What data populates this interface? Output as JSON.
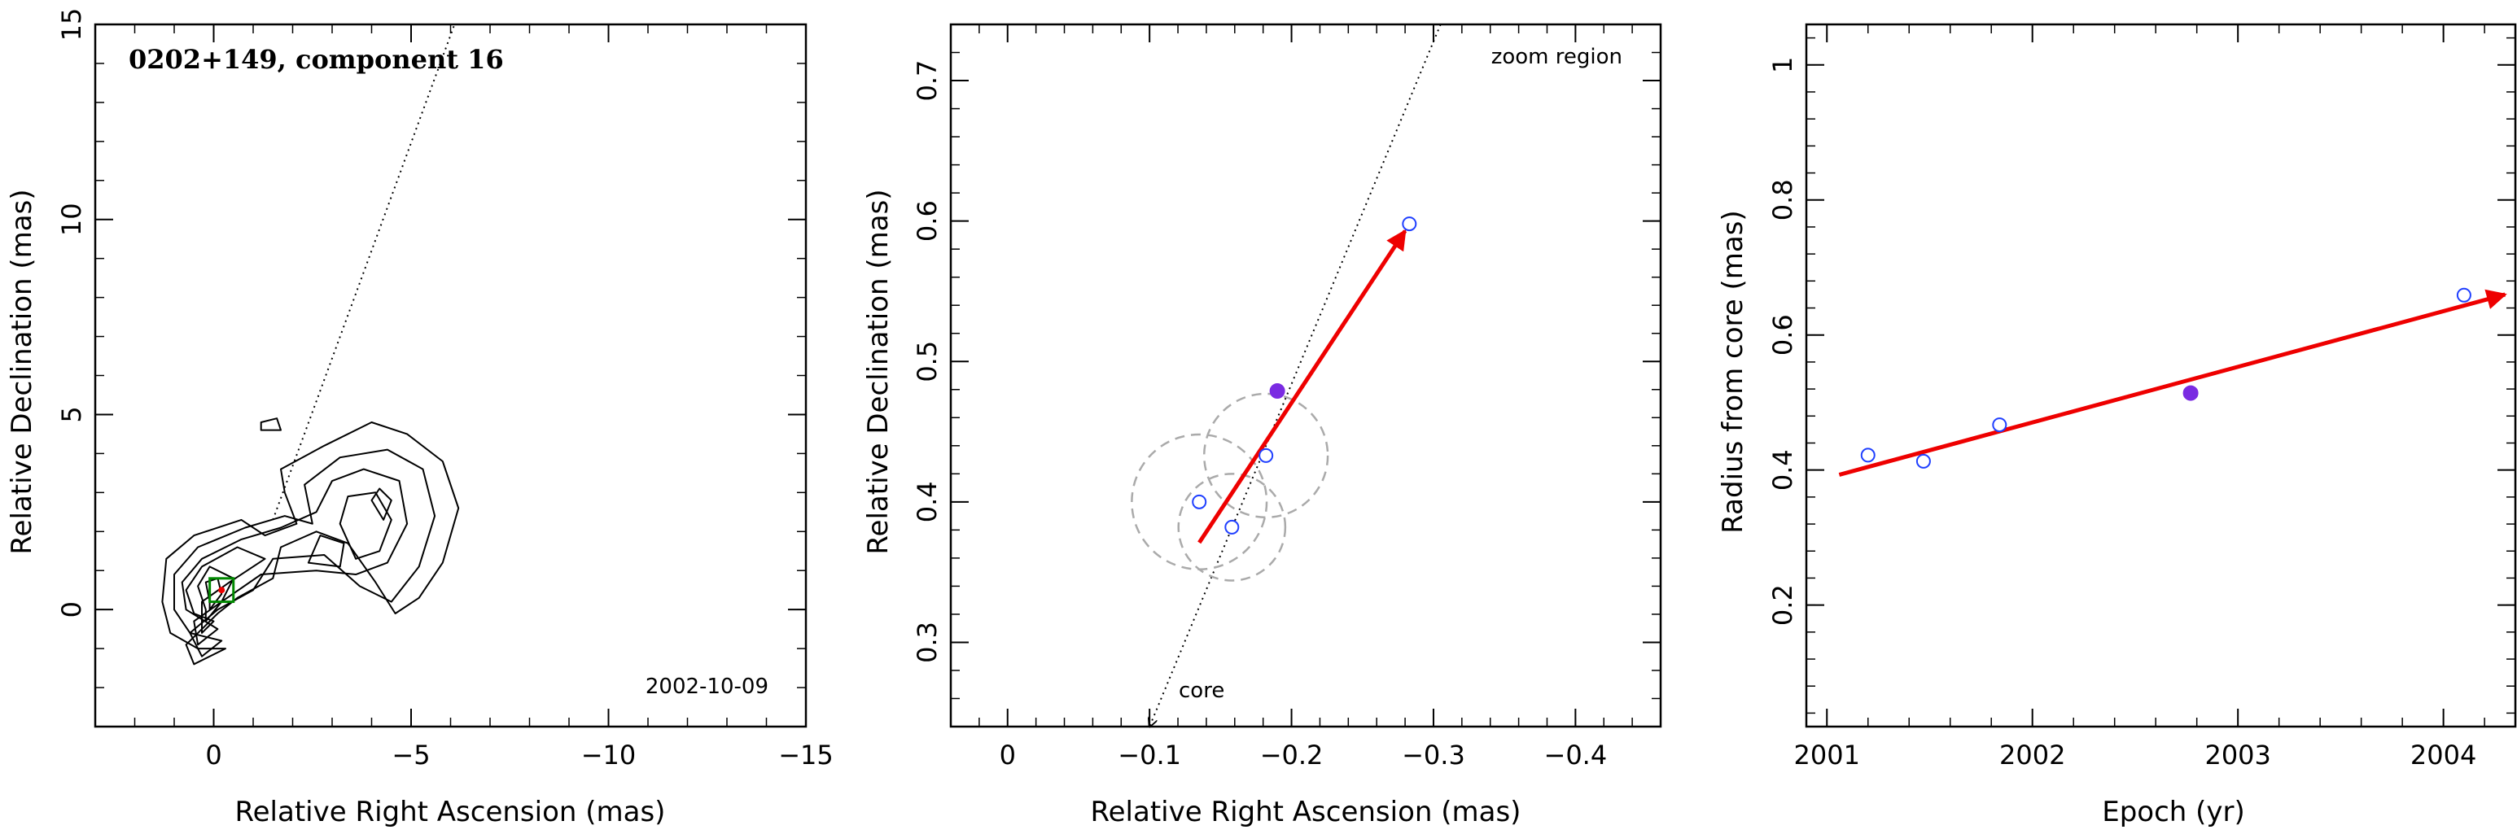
{
  "colors": {
    "axis": "#000000",
    "contour": "#000000",
    "arrow": "#ee0000",
    "open_marker": "#1f3fff",
    "filled_marker": "#7a2be2",
    "dashed_circle": "#aaaaaa",
    "box": "#008800"
  },
  "chart_data": [
    {
      "type": "contour",
      "title": "0202+149, component 16",
      "date_label": "2002-10-09",
      "xlabel": "Relative Right Ascension (mas)",
      "ylabel": "Relative Declination (mas)",
      "xlim": [
        3,
        -15
      ],
      "ylim": [
        -3,
        15
      ],
      "xticks": [
        0,
        -5,
        -10,
        -15
      ],
      "xtick_labels": [
        "0",
        "−5",
        "−10",
        "−15"
      ],
      "yticks": [
        0,
        5,
        10,
        15
      ],
      "ytick_labels": [
        "0",
        "5",
        "10",
        "15"
      ],
      "dotted_line": [
        [
          -1.5,
          2.3
        ],
        [
          -6.1,
          15
        ]
      ],
      "component_box": {
        "x": -0.2,
        "y": 0.5,
        "half_size": 0.3
      },
      "contours": [
        [
          [
            -0.3,
            -1.0
          ],
          [
            0.5,
            -1.4
          ],
          [
            0.7,
            -0.9
          ],
          [
            -0.1,
            -0.1
          ],
          [
            -0.6,
            0.3
          ],
          [
            -1.5,
            0.8
          ],
          [
            -1.7,
            1.6
          ],
          [
            -2.6,
            2.0
          ],
          [
            -3.4,
            1.7
          ],
          [
            -4.1,
            0.7
          ],
          [
            -4.6,
            -0.1
          ],
          [
            -5.2,
            0.3
          ],
          [
            -5.8,
            1.2
          ],
          [
            -6.2,
            2.6
          ],
          [
            -5.8,
            3.8
          ],
          [
            -4.9,
            4.5
          ],
          [
            -4.0,
            4.8
          ],
          [
            -2.8,
            4.2
          ],
          [
            -1.7,
            3.6
          ],
          [
            -1.8,
            3.0
          ],
          [
            -2.1,
            2.2
          ],
          [
            -1.3,
            1.9
          ],
          [
            -0.7,
            2.3
          ],
          [
            0.5,
            1.9
          ],
          [
            1.2,
            1.3
          ],
          [
            1.3,
            0.2
          ],
          [
            1.1,
            -0.6
          ],
          [
            0.4,
            -1.0
          ],
          [
            -0.3,
            -1.0
          ]
        ],
        [
          [
            -0.2,
            -0.8
          ],
          [
            0.3,
            -1.2
          ],
          [
            0.6,
            -0.6
          ],
          [
            -0.1,
            0.0
          ],
          [
            -1.0,
            0.5
          ],
          [
            -1.5,
            1.3
          ],
          [
            -2.8,
            1.4
          ],
          [
            -3.7,
            0.6
          ],
          [
            -4.5,
            0.2
          ],
          [
            -5.2,
            1.1
          ],
          [
            -5.6,
            2.4
          ],
          [
            -5.3,
            3.6
          ],
          [
            -4.4,
            4.1
          ],
          [
            -3.2,
            3.9
          ],
          [
            -2.3,
            3.2
          ],
          [
            -2.5,
            2.2
          ],
          [
            -1.8,
            2.4
          ],
          [
            -0.8,
            2.1
          ],
          [
            0.4,
            1.6
          ],
          [
            1.0,
            0.9
          ],
          [
            1.0,
            0.0
          ],
          [
            0.6,
            -0.6
          ],
          [
            -0.2,
            -0.8
          ]
        ],
        [
          [
            -0.1,
            -0.5
          ],
          [
            0.4,
            -0.9
          ],
          [
            0.5,
            -0.3
          ],
          [
            -0.2,
            0.2
          ],
          [
            -1.2,
            0.9
          ],
          [
            -2.6,
            1.0
          ],
          [
            -3.6,
            0.9
          ],
          [
            -4.4,
            1.2
          ],
          [
            -4.9,
            2.2
          ],
          [
            -4.7,
            3.3
          ],
          [
            -3.8,
            3.6
          ],
          [
            -3.0,
            3.3
          ],
          [
            -2.6,
            2.5
          ],
          [
            -1.7,
            2.1
          ],
          [
            -0.7,
            1.8
          ],
          [
            0.3,
            1.3
          ],
          [
            0.8,
            0.7
          ],
          [
            0.7,
            0.0
          ],
          [
            -0.1,
            -0.5
          ]
        ],
        [
          [
            0.0,
            -0.3
          ],
          [
            0.3,
            -0.6
          ],
          [
            0.3,
            0.2
          ],
          [
            -0.4,
            0.7
          ],
          [
            -1.3,
            1.3
          ],
          [
            -0.6,
            1.6
          ],
          [
            0.3,
            1.1
          ],
          [
            0.7,
            0.5
          ],
          [
            0.5,
            -0.1
          ],
          [
            0.0,
            -0.3
          ]
        ],
        [
          [
            -3.6,
            1.3
          ],
          [
            -4.2,
            1.5
          ],
          [
            -4.5,
            2.3
          ],
          [
            -4.1,
            3.0
          ],
          [
            -3.4,
            2.9
          ],
          [
            -3.2,
            2.2
          ],
          [
            -3.6,
            1.3
          ]
        ],
        [
          [
            -2.4,
            1.2
          ],
          [
            -3.2,
            1.1
          ],
          [
            -3.3,
            1.7
          ],
          [
            -2.7,
            1.9
          ],
          [
            -2.4,
            1.2
          ]
        ],
        [
          [
            0.2,
            0.0
          ],
          [
            0.2,
            -0.3
          ],
          [
            -0.2,
            0.2
          ],
          [
            -0.5,
            0.8
          ],
          [
            0.1,
            1.1
          ],
          [
            0.4,
            0.6
          ],
          [
            0.2,
            0.0
          ]
        ],
        [
          [
            0.1,
            0.2
          ],
          [
            0.1,
            0.0
          ],
          [
            -0.2,
            0.4
          ],
          [
            -0.1,
            0.8
          ],
          [
            0.2,
            0.7
          ],
          [
            0.1,
            0.2
          ]
        ],
        [
          [
            -4.3,
            2.3
          ],
          [
            -4.5,
            2.8
          ],
          [
            -4.2,
            3.1
          ],
          [
            -4.0,
            2.8
          ],
          [
            -4.3,
            2.3
          ]
        ],
        [
          [
            -1.2,
            4.6
          ],
          [
            -1.7,
            4.6
          ],
          [
            -1.6,
            4.9
          ],
          [
            -1.2,
            4.8
          ],
          [
            -1.2,
            4.6
          ]
        ]
      ]
    },
    {
      "type": "scatter",
      "xlabel": "Relative Right Ascension (mas)",
      "ylabel": "Relative Declination (mas)",
      "xlim": [
        0.04,
        -0.46
      ],
      "ylim": [
        0.24,
        0.74
      ],
      "xticks": [
        0,
        -0.1,
        -0.2,
        -0.3,
        -0.4
      ],
      "xtick_labels": [
        "0",
        "−0.1",
        "−0.2",
        "−0.3",
        "−0.4"
      ],
      "yticks": [
        0.3,
        0.4,
        0.5,
        0.6,
        0.7
      ],
      "ytick_labels": [
        "0.3",
        "0.4",
        "0.5",
        "0.6",
        "0.7"
      ],
      "annotation_zoom": "zoom region",
      "annotation_core": "core",
      "dotted_line": [
        [
          -0.1,
          0.24
        ],
        [
          -0.305,
          0.74
        ]
      ],
      "open_points": [
        {
          "x": -0.135,
          "y": 0.4
        },
        {
          "x": -0.158,
          "y": 0.382
        },
        {
          "x": -0.182,
          "y": 0.433
        },
        {
          "x": -0.283,
          "y": 0.598
        }
      ],
      "filled_points": [
        {
          "x": -0.19,
          "y": 0.479
        }
      ],
      "circles": [
        {
          "x": -0.135,
          "y": 0.4,
          "r": 0.048
        },
        {
          "x": -0.158,
          "y": 0.382,
          "r": 0.038
        },
        {
          "x": -0.182,
          "y": 0.433,
          "r": 0.044
        }
      ],
      "arrow": {
        "from": [
          -0.135,
          0.371
        ],
        "to": [
          -0.28,
          0.593
        ]
      }
    },
    {
      "type": "scatter",
      "xlabel": "Epoch (yr)",
      "ylabel": "Radius from core (mas)",
      "xlim": [
        2000.9,
        2004.35
      ],
      "ylim": [
        0.02,
        1.06
      ],
      "xticks": [
        2001,
        2002,
        2003,
        2004
      ],
      "xtick_labels": [
        "2001",
        "2002",
        "2003",
        "2004"
      ],
      "yticks": [
        0.2,
        0.4,
        0.6,
        0.8,
        1
      ],
      "ytick_labels": [
        "0.2",
        "0.4",
        "0.6",
        "0.8",
        "1"
      ],
      "open_points": [
        {
          "x": 2001.2,
          "y": 0.422
        },
        {
          "x": 2001.47,
          "y": 0.413
        },
        {
          "x": 2001.84,
          "y": 0.467
        },
        {
          "x": 2004.1,
          "y": 0.659
        }
      ],
      "filled_points": [
        {
          "x": 2002.77,
          "y": 0.514
        }
      ],
      "arrow": {
        "from": [
          2001.06,
          0.393
        ],
        "to": [
          2004.3,
          0.66
        ]
      }
    }
  ]
}
